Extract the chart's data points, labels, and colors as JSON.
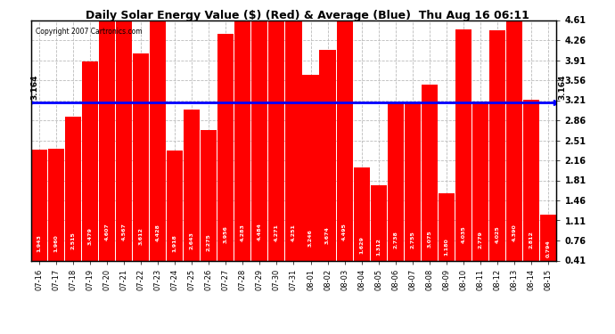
{
  "title": "Daily Solar Energy Value ($) (Red) & Average (Blue)  Thu Aug 16 06:11",
  "copyright": "Copyright 2007 Cartronics.com",
  "average": 3.164,
  "average_label": "3.164",
  "bar_color": "#FF0000",
  "average_line_color": "#0000FF",
  "background_color": "#FFFFFF",
  "plot_bg_color": "#FFFFFF",
  "grid_color": "#BBBBBB",
  "ylim": [
    0.41,
    4.61
  ],
  "yticks": [
    0.41,
    0.76,
    1.11,
    1.46,
    1.81,
    2.16,
    2.51,
    2.86,
    3.21,
    3.56,
    3.91,
    4.26,
    4.61
  ],
  "categories": [
    "07-16",
    "07-17",
    "07-18",
    "07-19",
    "07-20",
    "07-21",
    "07-22",
    "07-23",
    "07-24",
    "07-25",
    "07-26",
    "07-27",
    "07-28",
    "07-29",
    "07-30",
    "07-31",
    "08-01",
    "08-02",
    "08-03",
    "08-04",
    "08-05",
    "08-06",
    "08-07",
    "08-08",
    "08-09",
    "08-10",
    "08-11",
    "08-12",
    "08-13",
    "08-14",
    "08-15"
  ],
  "values": [
    1.943,
    1.96,
    2.515,
    3.479,
    4.607,
    4.567,
    3.612,
    4.428,
    1.918,
    2.643,
    2.275,
    3.956,
    4.283,
    4.484,
    4.271,
    4.251,
    3.246,
    3.674,
    4.495,
    1.629,
    1.312,
    2.738,
    2.755,
    3.075,
    1.18,
    4.035,
    2.779,
    4.025,
    4.39,
    2.812,
    0.794
  ]
}
